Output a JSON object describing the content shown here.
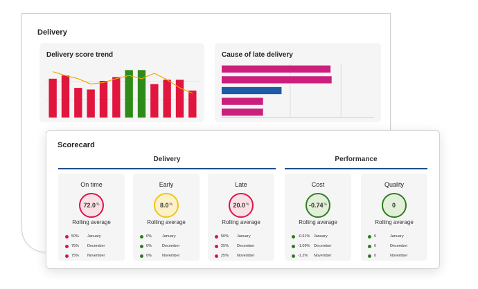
{
  "delivery_panel": {
    "title": "Delivery",
    "trend": {
      "title": "Delivery score trend",
      "chart_data": {
        "type": "bar",
        "values": [
          72,
          78,
          55,
          52,
          68,
          75,
          88,
          88,
          62,
          70,
          70,
          50
        ],
        "series_colors": [
          "#e0163f",
          "#e0163f",
          "#e0163f",
          "#e0163f",
          "#e0163f",
          "#e0163f",
          "#2e8b1a",
          "#2e8b1a",
          "#e0163f",
          "#e0163f",
          "#e0163f",
          "#e0163f"
        ],
        "line": [
          85,
          78,
          72,
          62,
          65,
          72,
          78,
          72,
          82,
          70,
          55,
          45
        ],
        "line_color": "#f2a400",
        "ylim": [
          0,
          100
        ]
      }
    },
    "cause": {
      "title": "Cause of late delivery",
      "chart_data": {
        "type": "bar",
        "orientation": "horizontal",
        "values": [
          100,
          101,
          55,
          38,
          38
        ],
        "colors": [
          "#cc1f7d",
          "#cc1f7d",
          "#1f5aa6",
          "#cc1f7d",
          "#cc1f7d"
        ],
        "xlim": [
          0,
          140
        ]
      }
    }
  },
  "scorecard": {
    "title": "Scorecard",
    "groups": {
      "delivery": "Delivery",
      "performance": "Performance"
    },
    "rolling_label": "Rolling average",
    "metrics": [
      {
        "label": "On time",
        "value": "72.0",
        "unit": "%",
        "status": "red",
        "history": [
          {
            "val": "50%",
            "month": "January",
            "color": "#d8164c"
          },
          {
            "val": "75%",
            "month": "December",
            "color": "#d8164c"
          },
          {
            "val": "75%",
            "month": "November",
            "color": "#d8164c"
          }
        ]
      },
      {
        "label": "Early",
        "value": "8.0",
        "unit": "%",
        "status": "yellow",
        "history": [
          {
            "val": "0%",
            "month": "January",
            "color": "#2e7d1f"
          },
          {
            "val": "0%",
            "month": "December",
            "color": "#2e7d1f"
          },
          {
            "val": "0%",
            "month": "November",
            "color": "#2e7d1f"
          }
        ]
      },
      {
        "label": "Late",
        "value": "20.0",
        "unit": "%",
        "status": "red",
        "history": [
          {
            "val": "50%",
            "month": "January",
            "color": "#d8164c"
          },
          {
            "val": "25%",
            "month": "December",
            "color": "#d8164c"
          },
          {
            "val": "25%",
            "month": "November",
            "color": "#d8164c"
          }
        ]
      },
      {
        "label": "Cost",
        "value": "-0.74",
        "unit": "%",
        "status": "green",
        "history": [
          {
            "val": "-0.61%",
            "month": "January",
            "color": "#2e7d1f"
          },
          {
            "val": "-1.09%",
            "month": "December",
            "color": "#2e7d1f"
          },
          {
            "val": "-1.2%",
            "month": "November",
            "color": "#2e7d1f"
          }
        ]
      },
      {
        "label": "Quality",
        "value": "0",
        "unit": "",
        "status": "green",
        "history": [
          {
            "val": "0",
            "month": "January",
            "color": "#2e7d1f"
          },
          {
            "val": "0",
            "month": "December",
            "color": "#2e7d1f"
          },
          {
            "val": "0",
            "month": "November",
            "color": "#2e7d1f"
          }
        ]
      }
    ]
  }
}
